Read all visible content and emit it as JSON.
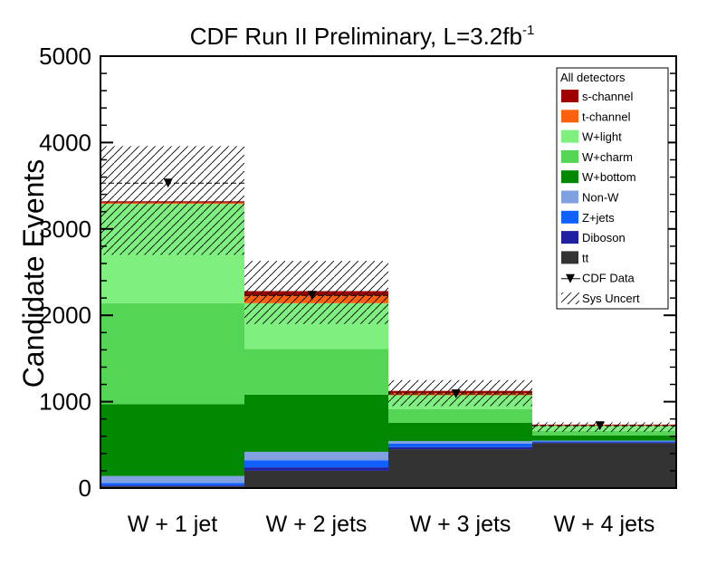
{
  "chart_data": {
    "type": "bar",
    "stacked": true,
    "title": "CDF Run II Preliminary, L=3.2fb",
    "title_superscript": "-1",
    "xlabel": "",
    "ylabel": "Candidate Events",
    "ylim": [
      0,
      5000
    ],
    "yticks": [
      0,
      1000,
      2000,
      3000,
      4000,
      5000
    ],
    "ytick_labels": [
      "0",
      "1000",
      "2000",
      "3000",
      "4000",
      "5000"
    ],
    "categories": [
      "W + 1 jet",
      "W + 2 jets",
      "W + 3 jets",
      "W + 4 jets"
    ],
    "series": [
      {
        "name": "tt",
        "color": "#333333",
        "values": [
          20,
          200,
          450,
          520
        ]
      },
      {
        "name": "Diboson",
        "color": "#2020a0",
        "values": [
          10,
          40,
          25,
          10
        ]
      },
      {
        "name": "Z+jets",
        "color": "#1060ff",
        "values": [
          30,
          80,
          40,
          10
        ]
      },
      {
        "name": "Non-W",
        "color": "#80a0e0",
        "values": [
          80,
          100,
          30,
          10
        ]
      },
      {
        "name": "W+bottom",
        "color": "#008800",
        "values": [
          830,
          660,
          210,
          60
        ]
      },
      {
        "name": "W+charm",
        "color": "#55d555",
        "values": [
          1170,
          530,
          160,
          50
        ]
      },
      {
        "name": "W+light",
        "color": "#7ff07f",
        "values": [
          1150,
          530,
          160,
          60
        ]
      },
      {
        "name": "t-channel",
        "color": "#ff6010",
        "values": [
          15,
          90,
          25,
          8
        ]
      },
      {
        "name": "s-channel",
        "color": "#a00000",
        "values": [
          15,
          50,
          25,
          7
        ]
      }
    ],
    "data": {
      "name": "CDF Data",
      "values": [
        3530,
        2230,
        1090,
        720
      ]
    },
    "sys_uncert": {
      "name": "Sys Uncert",
      "low": [
        2700,
        1900,
        950,
        650
      ],
      "high": [
        3960,
        2630,
        1250,
        760
      ]
    },
    "legend": {
      "title": "All detectors",
      "placement": "top-right",
      "entries": [
        "s-channel",
        "t-channel",
        "W+light",
        "W+charm",
        "W+bottom",
        "Non-W",
        "Z+jets",
        "Diboson",
        "tt",
        "CDF Data",
        "Sys Uncert"
      ]
    }
  }
}
